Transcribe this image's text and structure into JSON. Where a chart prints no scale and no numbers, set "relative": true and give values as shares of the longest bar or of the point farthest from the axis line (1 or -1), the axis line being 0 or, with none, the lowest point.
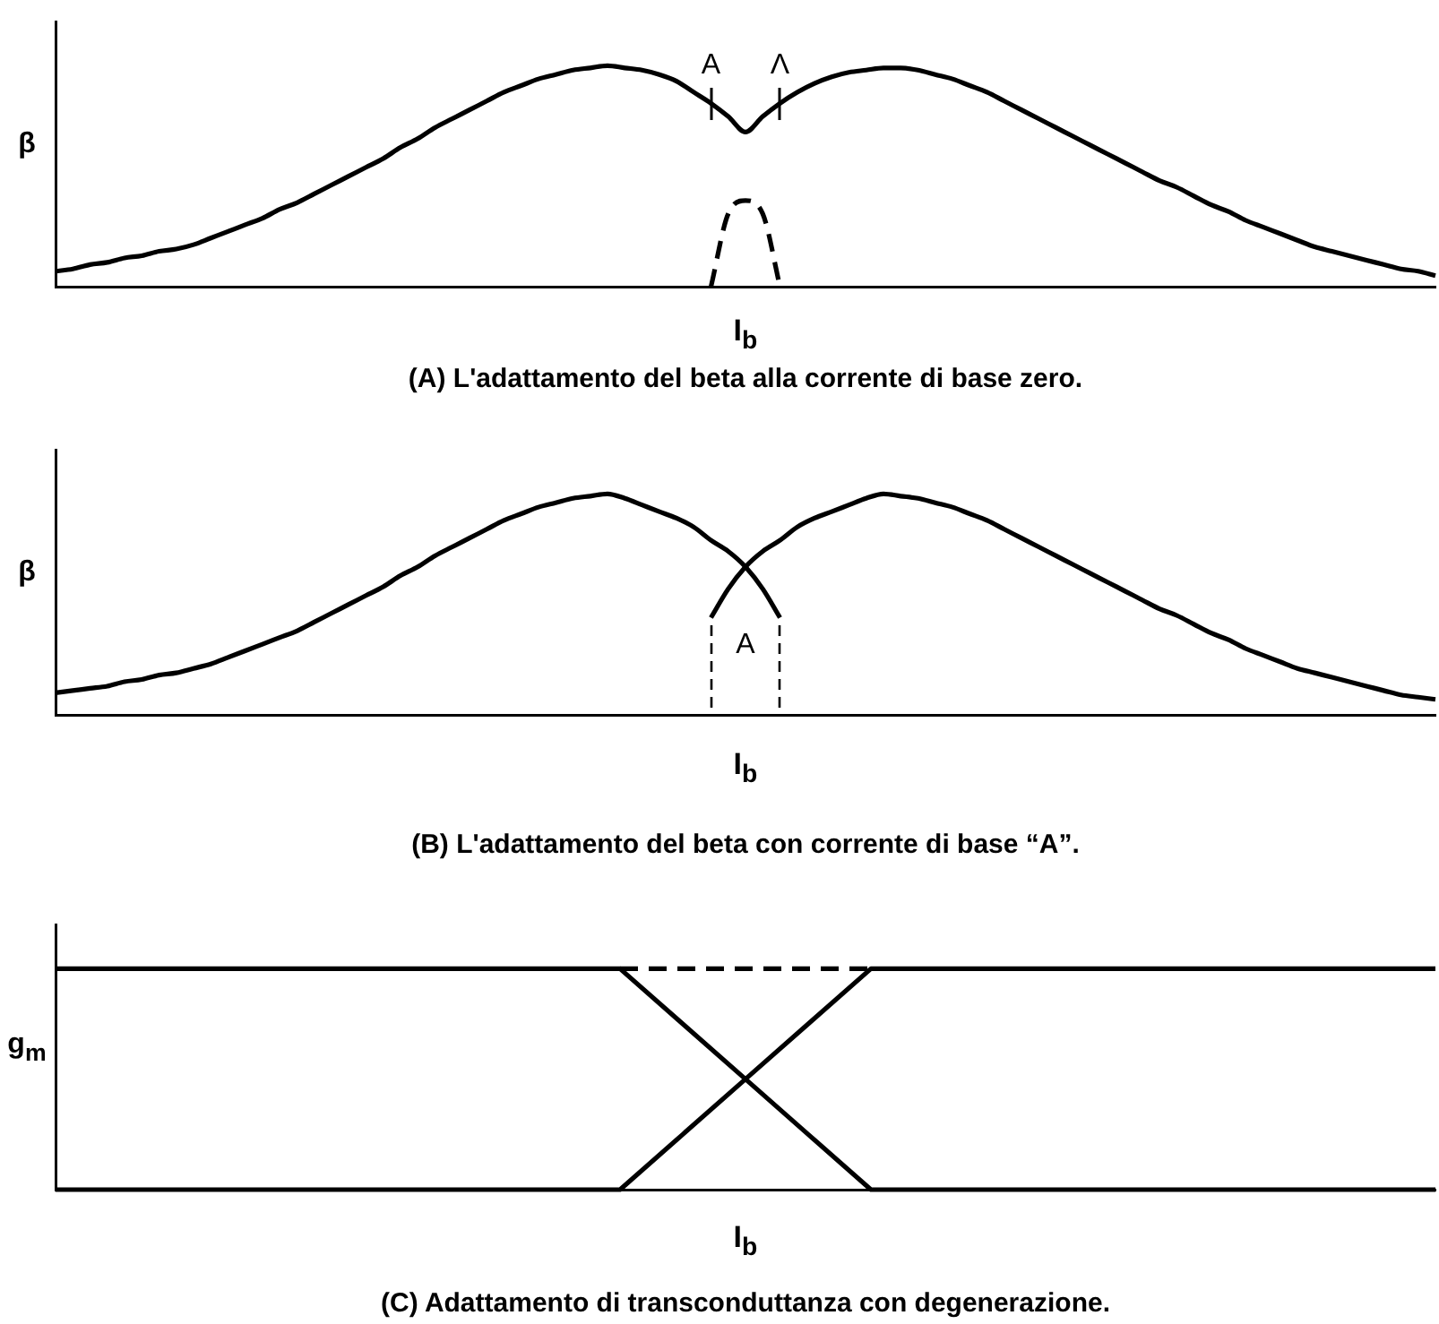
{
  "chart_data": [
    {
      "type": "line",
      "title": "(A) L'adattamento del beta alla corrente di base zero.",
      "xlabel": "I$_{b}$",
      "ylabel": "β",
      "relative": true,
      "categories": [
        null,
        null,
        null,
        null,
        null,
        null,
        null,
        null,
        null,
        null,
        null,
        null,
        null,
        null,
        null,
        null,
        null,
        null,
        null,
        null,
        null,
        null,
        null,
        null,
        null,
        null,
        null,
        null,
        null,
        null,
        null,
        null,
        null,
        null,
        null,
        null,
        null,
        null,
        null,
        null,
        null,
        null,
        null,
        null,
        null,
        null,
        null,
        null,
        null,
        null,
        null,
        null,
        null,
        null,
        null,
        null,
        null,
        null,
        null,
        null,
        null,
        null,
        null,
        null,
        null,
        null,
        null,
        null,
        null,
        null,
        null,
        null,
        null,
        null,
        null,
        null,
        null,
        null,
        null,
        null,
        null
      ],
      "series": [
        {
          "color": "#000000",
          "line_style": "solid",
          "values": [
            0.07,
            0.08,
            0.1,
            0.11,
            0.13,
            0.14,
            0.16,
            0.17,
            0.19,
            0.22,
            0.25,
            0.28,
            0.31,
            0.35,
            0.38,
            0.42,
            0.46,
            0.5,
            0.54,
            0.58,
            0.63,
            0.67,
            0.72,
            0.76,
            0.8,
            0.84,
            0.88,
            0.91,
            0.94,
            0.96,
            0.98,
            0.99,
            1.0,
            0.99,
            0.98,
            0.96,
            0.93,
            0.88,
            0.83,
            0.77,
            0.7,
            0.77,
            0.83,
            0.88,
            0.92,
            0.95,
            0.97,
            0.98,
            0.99,
            0.99,
            0.98,
            0.96,
            0.94,
            0.91,
            0.88,
            0.84,
            0.8,
            0.76,
            0.72,
            0.68,
            0.64,
            0.6,
            0.56,
            0.52,
            0.48,
            0.45,
            0.41,
            0.37,
            0.34,
            0.3,
            0.27,
            0.24,
            0.21,
            0.18,
            0.16,
            0.14,
            0.12,
            0.1,
            0.08,
            0.07,
            0.05
          ]
        },
        {
          "color": "#000000",
          "line_style": "dashed",
          "values": [
            null,
            null,
            null,
            null,
            null,
            null,
            null,
            null,
            null,
            null,
            null,
            null,
            null,
            null,
            null,
            null,
            null,
            null,
            null,
            null,
            null,
            null,
            null,
            null,
            null,
            null,
            null,
            null,
            null,
            null,
            null,
            null,
            null,
            null,
            null,
            null,
            null,
            null,
            0,
            0.33,
            0.39,
            0.33,
            0,
            null,
            null,
            null,
            null,
            null,
            null,
            null,
            null,
            null,
            null,
            null,
            null,
            null,
            null,
            null,
            null,
            null,
            null,
            null,
            null,
            null,
            null,
            null,
            null,
            null,
            null,
            null,
            null,
            null,
            null,
            null,
            null,
            null,
            null,
            null,
            null,
            null,
            null
          ]
        }
      ],
      "annotations": [
        "A",
        "Λ"
      ]
    },
    {
      "type": "line",
      "title": "(B) L'adattamento del beta con corrente di base “A”.",
      "xlabel": "I$_{b}$",
      "ylabel": "β",
      "relative": true,
      "categories": [
        null,
        null,
        null,
        null,
        null,
        null,
        null,
        null,
        null,
        null,
        null,
        null,
        null,
        null,
        null,
        null,
        null,
        null,
        null,
        null,
        null,
        null,
        null,
        null,
        null,
        null,
        null,
        null,
        null,
        null,
        null,
        null,
        null,
        null,
        null,
        null,
        null,
        null,
        null,
        null,
        null,
        null,
        null,
        null,
        null,
        null,
        null,
        null,
        null,
        null,
        null,
        null,
        null,
        null,
        null,
        null,
        null,
        null,
        null,
        null,
        null,
        null,
        null,
        null,
        null,
        null,
        null,
        null,
        null,
        null,
        null,
        null,
        null,
        null,
        null,
        null,
        null,
        null,
        null,
        null,
        null
      ],
      "series": [
        {
          "color": "#000000",
          "line_style": "solid",
          "values": [
            0.1,
            0.11,
            0.12,
            0.13,
            0.15,
            0.16,
            0.18,
            0.19,
            0.21,
            0.23,
            0.26,
            0.29,
            0.32,
            0.35,
            0.38,
            0.42,
            0.46,
            0.5,
            0.54,
            0.58,
            0.63,
            0.67,
            0.72,
            0.76,
            0.8,
            0.84,
            0.88,
            0.91,
            0.94,
            0.96,
            0.98,
            0.99,
            1.0,
            0.98,
            0.95,
            0.92,
            0.89,
            0.85,
            0.79,
            0.74,
            0.67,
            0.57,
            0.44,
            null,
            null,
            null,
            null,
            null,
            null,
            null,
            null,
            null,
            null,
            null,
            null,
            null,
            null,
            null,
            null,
            null,
            null,
            null,
            null,
            null,
            null,
            null,
            null,
            null,
            null,
            null,
            null,
            null,
            null,
            null,
            null,
            null,
            null,
            null,
            null,
            null,
            null
          ]
        },
        {
          "color": "#000000",
          "line_style": "solid",
          "values": [
            null,
            null,
            null,
            null,
            null,
            null,
            null,
            null,
            null,
            null,
            null,
            null,
            null,
            null,
            null,
            null,
            null,
            null,
            null,
            null,
            null,
            null,
            null,
            null,
            null,
            null,
            null,
            null,
            null,
            null,
            null,
            null,
            null,
            null,
            null,
            null,
            null,
            null,
            0.44,
            0.57,
            0.67,
            0.74,
            0.79,
            0.85,
            0.89,
            0.92,
            0.95,
            0.98,
            1.0,
            0.99,
            0.98,
            0.96,
            0.94,
            0.91,
            0.88,
            0.84,
            0.8,
            0.76,
            0.72,
            0.68,
            0.64,
            0.6,
            0.56,
            0.52,
            0.48,
            0.45,
            0.41,
            0.37,
            0.34,
            0.3,
            0.27,
            0.24,
            0.21,
            0.19,
            0.17,
            0.15,
            0.13,
            0.11,
            0.09,
            0.08,
            0.07
          ]
        }
      ],
      "annotations": [
        "A"
      ]
    },
    {
      "type": "line",
      "title": "(C) Adattamento di transconduttanza con degenerazione.",
      "xlabel": "I$_{b}$",
      "ylabel": "g$_{m}$",
      "relative": true,
      "categories": [
        null,
        null,
        null,
        null,
        null,
        null,
        null,
        null,
        null,
        null,
        null,
        null,
        null,
        null,
        null,
        null,
        null,
        null,
        null,
        null,
        null,
        null,
        null
      ],
      "series": [
        {
          "color": "#000000",
          "line_style": "solid",
          "values": [
            1,
            1,
            1,
            1,
            1,
            1,
            1,
            1,
            1,
            1,
            0.75,
            0.5,
            0.25,
            0,
            0,
            0,
            0,
            0,
            0,
            0,
            0,
            0,
            0
          ]
        },
        {
          "color": "#000000",
          "line_style": "solid",
          "values": [
            0,
            0,
            0,
            0,
            0,
            0,
            0,
            0,
            0,
            0,
            0.25,
            0.5,
            0.75,
            1,
            1,
            1,
            1,
            1,
            1,
            1,
            1,
            1,
            1
          ]
        },
        {
          "color": "#000000",
          "line_style": "dashed",
          "values": [
            null,
            null,
            null,
            null,
            null,
            null,
            null,
            null,
            null,
            1,
            1,
            1,
            1,
            1,
            null,
            null,
            null,
            null,
            null,
            null,
            null,
            null,
            null
          ]
        }
      ]
    }
  ]
}
